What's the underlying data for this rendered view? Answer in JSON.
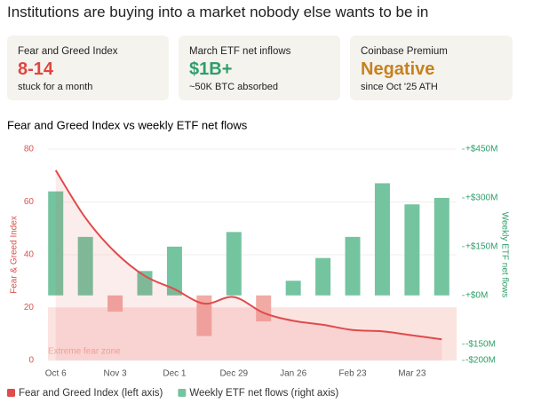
{
  "title": "Institutions are buying into a market nobody else wants to be in",
  "cards": [
    {
      "label": "Fear and Greed Index",
      "value": "8-14",
      "note": "stuck for a month",
      "color": "#e0463f"
    },
    {
      "label": "March ETF net inflows",
      "value": "$1B+",
      "note": "~50K BTC absorbed",
      "color": "#2f9e6a"
    },
    {
      "label": "Coinbase Premium",
      "value": "Negative",
      "note": "since Oct '25 ATH",
      "color": "#c8811c"
    }
  ],
  "chart_data": {
    "type": "combo",
    "title": "Fear and Greed Index vs weekly ETF net flows",
    "y_label": "Fear & Greed Index",
    "y2_label": "Weekly ETF net flows",
    "categories": [
      "Oct 6",
      null,
      "Nov 3",
      null,
      "Dec 1",
      null,
      "Dec 29",
      null,
      "Jan 26",
      null,
      "Feb 23",
      null,
      "Mar 23",
      null
    ],
    "ylim": [
      0,
      80
    ],
    "yticks": [
      0,
      20,
      40,
      60,
      80
    ],
    "y2lim": [
      -200,
      450
    ],
    "y2ticks": [
      {
        "value": 450,
        "label": "+$450M"
      },
      {
        "value": 300,
        "label": "+$300M"
      },
      {
        "value": 150,
        "label": "+$150M"
      },
      {
        "value": 0,
        "label": "+$0M"
      },
      {
        "value": -150,
        "label": "-$150M"
      },
      {
        "value": -200,
        "label": "-$200M"
      }
    ],
    "grid": true,
    "zones": [
      {
        "label": "Extreme fear zone",
        "from": 0,
        "to": 20,
        "color": "#fbe3e0"
      }
    ],
    "series": [
      {
        "name": "Fear and Greed Index (left axis)",
        "type": "line",
        "color": "#e04b4b",
        "values": [
          72,
          54,
          41,
          32,
          27,
          21.5,
          24,
          18,
          15,
          13.5,
          11.5,
          11,
          9.5,
          8
        ]
      },
      {
        "name": "Weekly ETF net flows (right axis)",
        "type": "bar",
        "axis": "y2",
        "color": "#74c4a0",
        "negative_color": "#f2aaa5",
        "values": [
          320,
          180,
          -50,
          75,
          150,
          -125,
          195,
          -80,
          45,
          115,
          180,
          345,
          280,
          300
        ]
      }
    ]
  }
}
